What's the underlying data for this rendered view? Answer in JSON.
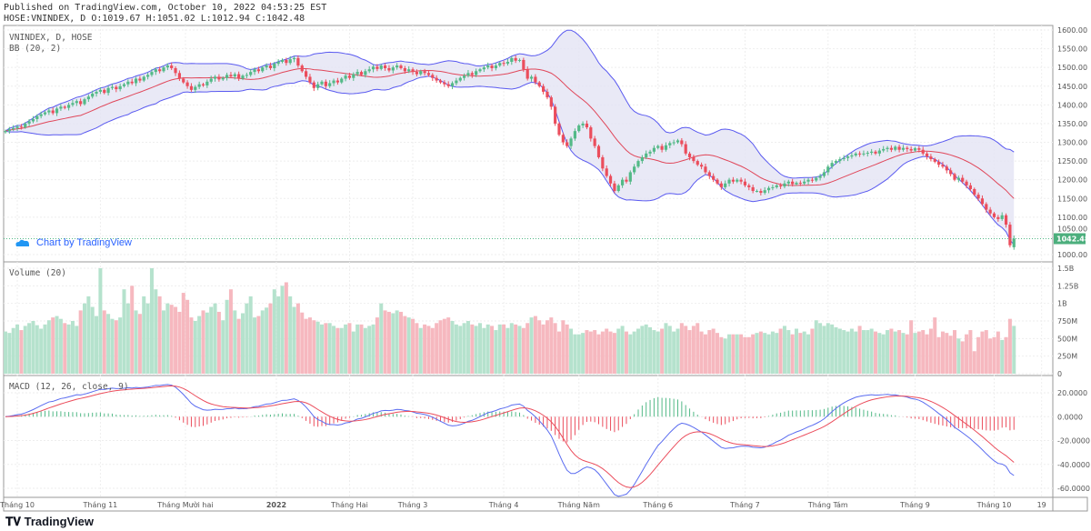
{
  "header": {
    "published": "Published on TradingView.com, October 10, 2022 04:53:25 EST",
    "ohlc_line": "HOSE:VNINDEX, D O:1019.67 H:1051.02 L:1012.94 C:1042.48"
  },
  "watermark": "Chart by TradingView",
  "footer_logo": "TradingView",
  "colors": {
    "up": "#53b987",
    "down": "#eb4d5c",
    "up_vol": "#b5e2cd",
    "down_vol": "#f6b8bf",
    "bb_line": "#5a5af0",
    "bb_fill": "#e4e4f4",
    "bb_basis": "#e0475a",
    "macd": "#5a6cf0",
    "signal": "#eb4d5c",
    "last_price_bg": "#4caf7d"
  },
  "chart_data": [
    {
      "type": "candlestick",
      "title": "VNINDEX, D, HOSE",
      "indicator": "BB (20, 2)",
      "last_price": "1042.48",
      "last_bar": {
        "open": 1019.67,
        "high": 1051.02,
        "low": 1012.94,
        "close": 1042.48
      },
      "ylim": [
        990,
        1610
      ],
      "yticks": [
        "1000.00",
        "1050.00",
        "1100.00",
        "1150.00",
        "1200.00",
        "1250.00",
        "1300.00",
        "1350.00",
        "1400.00",
        "1450.00",
        "1500.00",
        "1550.00",
        "1600.00"
      ],
      "close": [
        1330,
        1335,
        1338,
        1342,
        1340,
        1350,
        1356,
        1362,
        1370,
        1375,
        1380,
        1385,
        1378,
        1390,
        1395,
        1392,
        1400,
        1405,
        1410,
        1402,
        1415,
        1422,
        1430,
        1435,
        1440,
        1432,
        1445,
        1448,
        1442,
        1450,
        1455,
        1462,
        1458,
        1470,
        1465,
        1475,
        1480,
        1488,
        1495,
        1490,
        1500,
        1505,
        1498,
        1485,
        1470,
        1460,
        1450,
        1440,
        1448,
        1455,
        1452,
        1462,
        1470,
        1475,
        1468,
        1472,
        1480,
        1476,
        1482,
        1470,
        1478,
        1480,
        1488,
        1495,
        1490,
        1500,
        1505,
        1498,
        1510,
        1515,
        1520,
        1512,
        1522,
        1525,
        1505,
        1490,
        1475,
        1460,
        1445,
        1455,
        1462,
        1450,
        1458,
        1465,
        1460,
        1470,
        1478,
        1472,
        1482,
        1488,
        1480,
        1490,
        1495,
        1502,
        1496,
        1505,
        1498,
        1492,
        1500,
        1505,
        1498,
        1490,
        1495,
        1488,
        1482,
        1490,
        1485,
        1480,
        1472,
        1465,
        1460,
        1455,
        1450,
        1458,
        1465,
        1472,
        1478,
        1485,
        1480,
        1490,
        1495,
        1500,
        1505,
        1498,
        1505,
        1512,
        1510,
        1515,
        1525,
        1518,
        1520,
        1495,
        1470,
        1475,
        1460,
        1450,
        1435,
        1420,
        1395,
        1350,
        1320,
        1300,
        1290,
        1310,
        1330,
        1345,
        1350,
        1340,
        1310,
        1290,
        1260,
        1230,
        1210,
        1190,
        1170,
        1185,
        1200,
        1195,
        1220,
        1235,
        1250,
        1260,
        1270,
        1275,
        1285,
        1290,
        1280,
        1292,
        1298,
        1300,
        1305,
        1295,
        1270,
        1260,
        1250,
        1240,
        1235,
        1220,
        1210,
        1200,
        1190,
        1180,
        1190,
        1200,
        1195,
        1200,
        1195,
        1185,
        1180,
        1170,
        1170,
        1165,
        1172,
        1178,
        1180,
        1185,
        1182,
        1190,
        1195,
        1188,
        1192,
        1190,
        1195,
        1200,
        1198,
        1205,
        1210,
        1220,
        1235,
        1245,
        1250,
        1255,
        1258,
        1262,
        1265,
        1270,
        1268,
        1270,
        1272,
        1275,
        1270,
        1278,
        1282,
        1285,
        1280,
        1288,
        1280,
        1285,
        1282,
        1278,
        1284,
        1280,
        1270,
        1262,
        1255,
        1248,
        1240,
        1235,
        1225,
        1215,
        1200,
        1205,
        1195,
        1185,
        1175,
        1160,
        1150,
        1135,
        1120,
        1110,
        1100,
        1095,
        1105,
        1080,
        1025,
        1042.48
      ]
    },
    {
      "type": "bar",
      "title": "Volume (20)",
      "ylim": [
        0,
        1500
      ],
      "unit": "M",
      "yticks": [
        "0",
        "250M",
        "500M",
        "750M",
        "1B",
        "1.25B",
        "1.5B"
      ],
      "values": [
        600,
        580,
        650,
        700,
        620,
        680,
        720,
        750,
        690,
        640,
        700,
        760,
        800,
        820,
        780,
        720,
        700,
        750,
        680,
        900,
        1000,
        1100,
        950,
        820,
        1500,
        900,
        850,
        780,
        760,
        800,
        1200,
        1000,
        1250,
        900,
        850,
        1100,
        1000,
        1500,
        1200,
        1100,
        900,
        1000,
        980,
        950,
        880,
        1150,
        1050,
        800,
        750,
        820,
        900,
        870,
        950,
        1000,
        880,
        760,
        1050,
        1200,
        900,
        780,
        860,
        1000,
        1100,
        800,
        820,
        900,
        940,
        1000,
        1200,
        1100,
        1250,
        1300,
        1100,
        950,
        1000,
        870,
        780,
        800,
        760,
        740,
        700,
        720,
        720,
        680,
        650,
        650,
        700,
        720,
        600,
        700,
        700,
        650,
        680,
        700,
        800,
        1000,
        900,
        880,
        860,
        900,
        880,
        820,
        800,
        780,
        720,
        650,
        700,
        680,
        650,
        720,
        760,
        780,
        800,
        750,
        700,
        680,
        720,
        750,
        700,
        680,
        720,
        650,
        700,
        680,
        620,
        700,
        700,
        650,
        720,
        700,
        680,
        650,
        720,
        800,
        820,
        760,
        700,
        760,
        800,
        720,
        600,
        760,
        700,
        640,
        560,
        560,
        580,
        620,
        600,
        620,
        560,
        600,
        640,
        600,
        580,
        640,
        680,
        600,
        560,
        600,
        640,
        680,
        700,
        660,
        620,
        600,
        640,
        720,
        680,
        600,
        640,
        720,
        680,
        620,
        680,
        720,
        600,
        560,
        620,
        640,
        580,
        520,
        500,
        560,
        560,
        560,
        560,
        520,
        520,
        560,
        580,
        600,
        580,
        560,
        600,
        580,
        640,
        680,
        620,
        560,
        640,
        580,
        600,
        560,
        640,
        760,
        720,
        680,
        720,
        700,
        660,
        640,
        620,
        600,
        640,
        600,
        680,
        620,
        620,
        640,
        600,
        580,
        560,
        620,
        640,
        600,
        620,
        580,
        560,
        760,
        580,
        600,
        620,
        560,
        640,
        800,
        520,
        600,
        580,
        540,
        620,
        500,
        460,
        560,
        620,
        320,
        520,
        600,
        620,
        500,
        520,
        600,
        480,
        520,
        780,
        680
      ]
    },
    {
      "type": "line",
      "title": "MACD (12, 26, close, 9)",
      "ylim": [
        -65,
        28
      ],
      "yticks": [
        "-60.0000",
        "-40.0000",
        "-20.0000",
        "0.0000",
        "20.0000"
      ]
    }
  ],
  "xaxis": {
    "labels": [
      "Tháng 10",
      "Tháng 11",
      "Tháng Mười hai",
      "2022",
      "Tháng Hai",
      "Tháng 3",
      "Tháng 4",
      "Tháng Năm",
      "Tháng 6",
      "Tháng 7",
      "Tháng Tám",
      "Tháng 9",
      "Tháng 10",
      "19"
    ]
  }
}
